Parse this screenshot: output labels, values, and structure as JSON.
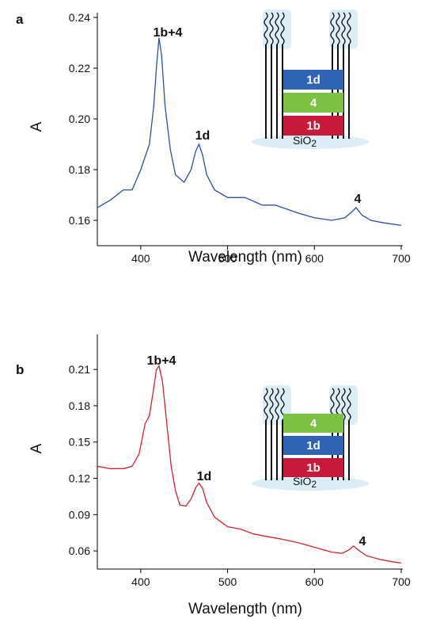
{
  "chart_data": [
    {
      "type": "line",
      "panel": "a",
      "x": [
        350,
        365,
        380,
        390,
        400,
        405,
        410,
        415,
        418,
        421,
        424,
        428,
        434,
        440,
        450,
        458,
        463,
        467,
        471,
        476,
        485,
        500,
        520,
        540,
        555,
        580,
        600,
        620,
        635,
        642,
        648,
        655,
        665,
        680,
        700
      ],
      "values": [
        0.165,
        0.168,
        0.172,
        0.172,
        0.18,
        0.185,
        0.19,
        0.205,
        0.22,
        0.232,
        0.225,
        0.205,
        0.188,
        0.178,
        0.175,
        0.18,
        0.187,
        0.19,
        0.186,
        0.178,
        0.172,
        0.169,
        0.169,
        0.166,
        0.166,
        0.163,
        0.161,
        0.16,
        0.161,
        0.163,
        0.165,
        0.162,
        0.16,
        0.159,
        0.158
      ],
      "color": "#2b4fa8",
      "xlim": [
        350,
        700
      ],
      "xticks": [
        400,
        500,
        600,
        700
      ],
      "ylim": [
        0.15,
        0.24
      ],
      "yticks": [
        0.16,
        0.18,
        {
          "value": 0.2,
          "label": "0.20"
        },
        0.22,
        0.24
      ],
      "xlabel": "Wavelength (nm)",
      "ylabel": "A",
      "annotations": [
        "1b+4",
        "1d",
        "4"
      ],
      "inset": {
        "layers": [
          {
            "label": "1d",
            "color": "#2f64b5"
          },
          {
            "label": "4",
            "color": "#7cc242"
          },
          {
            "label": "1b",
            "color": "#c8193a"
          }
        ],
        "substrate": "SiO",
        "substrate_sub": "2"
      }
    },
    {
      "type": "line",
      "panel": "b",
      "x": [
        350,
        365,
        380,
        390,
        398,
        405,
        410,
        414,
        418,
        421,
        425,
        430,
        435,
        440,
        445,
        452,
        458,
        463,
        467,
        471,
        476,
        485,
        500,
        515,
        530,
        545,
        560,
        580,
        600,
        620,
        632,
        640,
        645,
        652,
        660,
        675,
        690,
        700
      ],
      "values": [
        0.13,
        0.128,
        0.128,
        0.13,
        0.14,
        0.165,
        0.172,
        0.19,
        0.21,
        0.213,
        0.2,
        0.165,
        0.13,
        0.11,
        0.098,
        0.097,
        0.103,
        0.112,
        0.116,
        0.112,
        0.1,
        0.088,
        0.08,
        0.078,
        0.074,
        0.072,
        0.07,
        0.067,
        0.063,
        0.059,
        0.058,
        0.061,
        0.064,
        0.06,
        0.056,
        0.053,
        0.051,
        0.05
      ],
      "color": "#d0242e",
      "xlim": [
        350,
        700
      ],
      "xticks": [
        400,
        500,
        600,
        700
      ],
      "ylim": [
        0.045,
        0.235
      ],
      "yticks": [
        0.06,
        0.09,
        0.12,
        0.15,
        0.18,
        0.21
      ],
      "xlabel": "Wavelength (nm)",
      "ylabel": "A",
      "annotations": [
        "1b+4",
        "1d",
        "4"
      ],
      "inset": {
        "layers": [
          {
            "label": "4",
            "color": "#7cc242"
          },
          {
            "label": "1d",
            "color": "#2f64b5"
          },
          {
            "label": "1b",
            "color": "#c8193a"
          }
        ],
        "substrate": "SiO",
        "substrate_sub": "2"
      }
    }
  ]
}
